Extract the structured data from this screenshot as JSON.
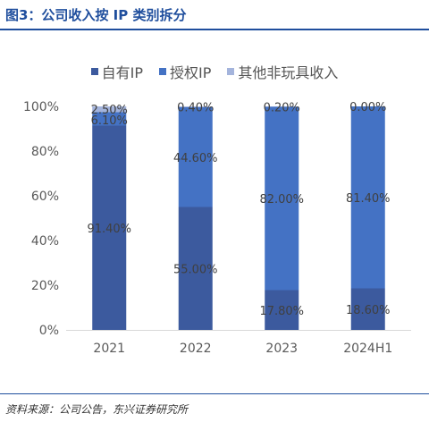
{
  "figure": {
    "title": "图3：公司收入按 IP 类别拆分",
    "source": "资料来源：公司公告，东兴证券研究所"
  },
  "colors": {
    "self_ip": "#3c5a9e",
    "licensed_ip": "#4472c4",
    "other": "#a4b4dc",
    "title": "#1f4e9d",
    "axis_text": "#595959",
    "label_text": "#404040"
  },
  "chart_data": {
    "type": "bar",
    "stacked": true,
    "categories": [
      "2021",
      "2022",
      "2023",
      "2024H1"
    ],
    "series": [
      {
        "name": "自有IP",
        "values": [
          91.4,
          55.0,
          17.8,
          18.6
        ],
        "labels": [
          "91.40%",
          "55.00%",
          "17.80%",
          "18.60%"
        ]
      },
      {
        "name": "授权IP",
        "values": [
          6.1,
          44.6,
          82.0,
          81.4
        ],
        "labels": [
          "6.10%",
          "44.60%",
          "82.00%",
          "81.40%"
        ]
      },
      {
        "name": "其他非玩具收入",
        "values": [
          2.5,
          0.4,
          0.2,
          0.0
        ],
        "labels": [
          "2.50%",
          "0.40%",
          "0.20%",
          "0.00%"
        ]
      }
    ],
    "ylim": [
      0,
      100
    ],
    "yticks": [
      0,
      20,
      40,
      60,
      80,
      100
    ],
    "ytick_labels": [
      "0%",
      "20%",
      "40%",
      "60%",
      "80%",
      "100%"
    ],
    "xlabel": "",
    "ylabel": "",
    "legend_position": "top-center",
    "grid": false
  }
}
